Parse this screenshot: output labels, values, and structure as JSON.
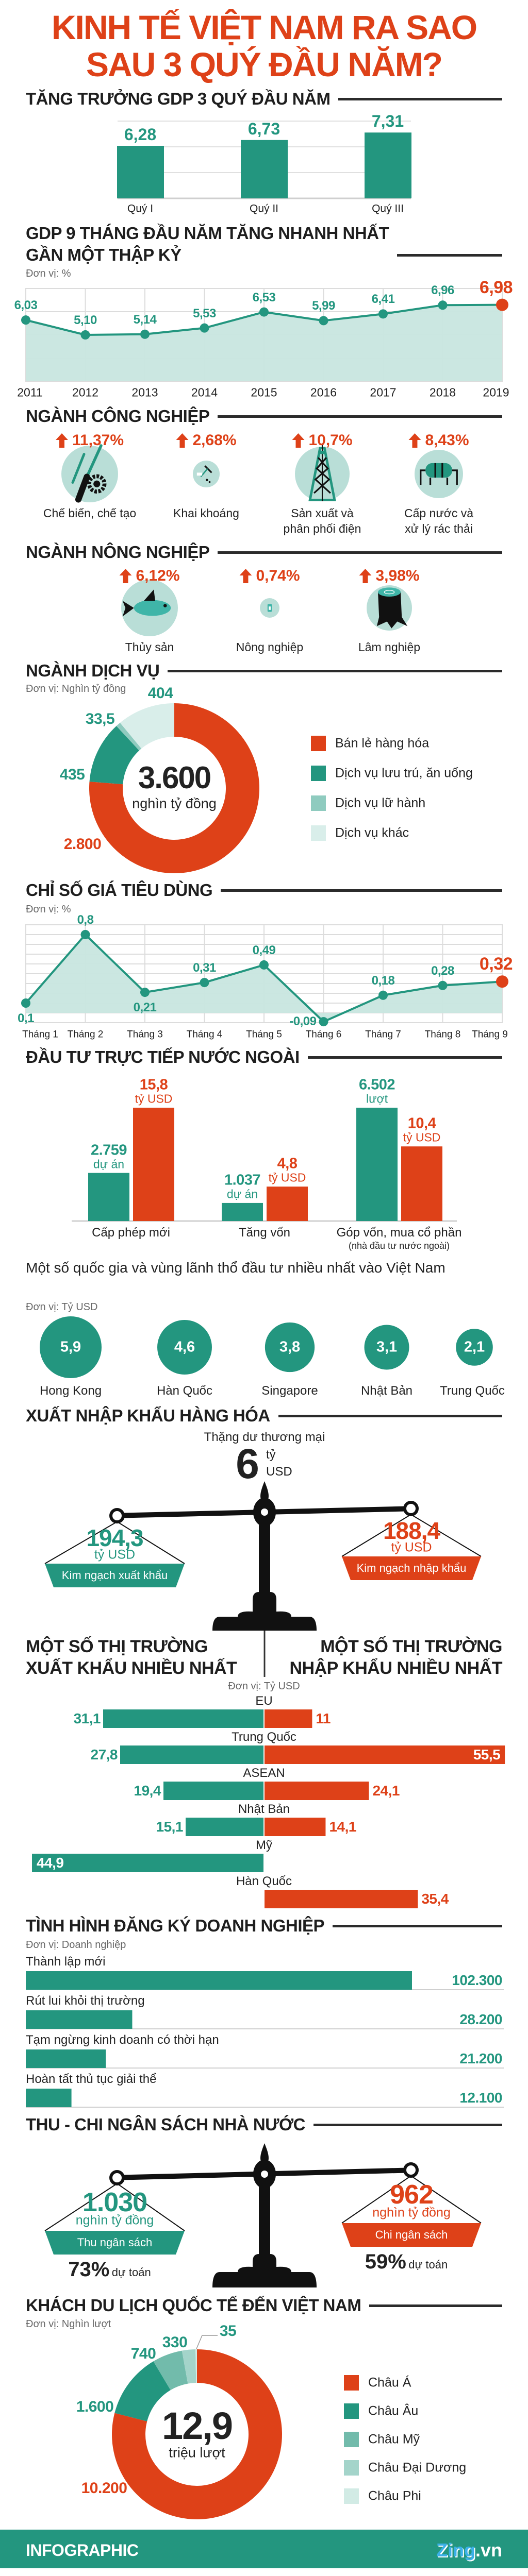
{
  "title": {
    "line1": "KINH TẾ VIỆT NAM RA SAO",
    "line2": "SAU 3 QUÝ ĐẦU NĂM?"
  },
  "colors": {
    "green": "#23967f",
    "orange": "#de4118",
    "light_teal": "#b9ded7",
    "area_fill": "#c8e6df",
    "dark": "#1e1e1e"
  },
  "industry": {
    "title": "NGÀNH CÔNG NGHIỆP",
    "items": [
      {
        "pct": "11,37%",
        "label": "Chế biến, chế tạo",
        "icon": "tools-icon"
      },
      {
        "pct": "2,68%",
        "label": "Khai khoáng",
        "icon": "pickaxe-icon"
      },
      {
        "pct": "10,7%",
        "label": "Sản xuất và\nphân phối điện",
        "icon": "power-tower-icon"
      },
      {
        "pct": "8,43%",
        "label": "Cấp nước và\nxử lý rác thải",
        "icon": "water-tank-icon"
      }
    ]
  },
  "agriculture": {
    "title": "NGÀNH NÔNG NGHIỆP",
    "items": [
      {
        "pct": "6,12%",
        "label": "Thủy sản",
        "icon": "fish-icon"
      },
      {
        "pct": "0,74%",
        "label": "Nông nghiệp",
        "icon": "grain-bag-icon"
      },
      {
        "pct": "3,98%",
        "label": "Lâm nghiệp",
        "icon": "tree-stump-icon"
      }
    ]
  },
  "trade_balance": {
    "title": "XUẤT NHẬP KHẨU HÀNG HÓA",
    "surplus_label": "Thặng dư thương mại",
    "surplus_value": "6",
    "surplus_unit_1": "tỷ",
    "surplus_unit_2": "USD",
    "export": {
      "value": "194,3",
      "unit": "tỷ USD",
      "label": "Kim ngạch xuất khẩu"
    },
    "import": {
      "value": "188,4",
      "unit": "tỷ USD",
      "label": "Kim ngạch nhập khẩu"
    }
  },
  "budget": {
    "title": "THU - CHI NGÂN SÁCH NHÀ NƯỚC",
    "revenue": {
      "value": "1.030",
      "unit": "nghìn tỷ đồng",
      "label": "Thu ngân sách",
      "pct": "73%",
      "pct_label": "dự toán"
    },
    "spending": {
      "value": "962",
      "unit": "nghìn tỷ đồng",
      "label": "Chi ngân sách",
      "pct": "59%",
      "pct_label": "dự toán"
    }
  },
  "footer": {
    "label": "INFOGRAPHIC",
    "brand_main": "Zing",
    "brand_suffix": ".vn"
  },
  "chart_data": [
    {
      "type": "bar",
      "title": "TĂNG TRƯỞNG GDP 3 QUÝ ĐẦU NĂM",
      "categories": [
        "Quý I",
        "Quý II",
        "Quý III"
      ],
      "values": [
        6.28,
        6.73,
        7.31
      ],
      "labels": [
        "6,28",
        "6,73",
        "7,31"
      ],
      "ylim": [
        2.2,
        8.2
      ],
      "grid": true
    },
    {
      "type": "area",
      "title": "GDP 9 THÁNG ĐẦU NĂM TĂNG NHANH NHẤT\nGẦN MỘT THẬP KỶ",
      "unit": "Đơn vị: %",
      "x": [
        "2011",
        "2012",
        "2013",
        "2014",
        "2015",
        "2016",
        "2017",
        "2018",
        "2019"
      ],
      "values": [
        6.03,
        5.1,
        5.14,
        5.53,
        6.53,
        5.99,
        6.41,
        6.96,
        6.98
      ],
      "labels": [
        "6,03",
        "5,10",
        "5,14",
        "5,53",
        "6,53",
        "5,99",
        "6,41",
        "6,96",
        "6,98"
      ],
      "ylim": [
        2.2,
        8.0
      ],
      "grid": true,
      "highlight_last": true
    },
    {
      "type": "pie",
      "title": "NGÀNH DỊCH VỤ",
      "unit": "Đơn vị: Nghìn tỷ đồng",
      "center_value": "3.600",
      "center_unit": "nghìn tỷ đồng",
      "categories": [
        "Bán lẻ hàng hóa",
        "Dịch vụ lưu trú, ăn uống",
        "Dịch vụ lữ hành",
        "Dịch vụ khác"
      ],
      "values": [
        2800,
        435,
        33.5,
        404
      ],
      "labels": [
        "2.800",
        "435",
        "33,5",
        "404"
      ],
      "colors": [
        "#de4118",
        "#23967f",
        "#8fcbbf",
        "#d9eeea"
      ],
      "legend": "right"
    },
    {
      "type": "area",
      "title": "CHỈ SỐ GIÁ TIÊU DÙNG",
      "unit": "Đơn vị: %",
      "x": [
        "Tháng 1",
        "Tháng 2",
        "Tháng 3",
        "Tháng 4",
        "Tháng 5",
        "Tháng 6",
        "Tháng 7",
        "Tháng 8",
        "Tháng 9"
      ],
      "values": [
        0.1,
        0.8,
        0.21,
        0.31,
        0.49,
        -0.09,
        0.18,
        0.28,
        0.32
      ],
      "labels": [
        "0,1",
        "0,8",
        "0,21",
        "0,31",
        "0,49",
        "-0,09",
        "0,18",
        "0,28",
        "0,32"
      ],
      "ylim": [
        -0.1,
        0.9
      ],
      "grid": true,
      "highlight_last": true
    },
    {
      "type": "bar",
      "title": "ĐẦU TƯ TRỰC TIẾP NƯỚC NGOÀI",
      "categories": [
        "Cấp phép mới",
        "Tăng vốn",
        "Góp vốn, mua cổ phần"
      ],
      "category_notes": [
        "",
        "",
        "(nhà đầu tư nước ngoài)"
      ],
      "series": [
        {
          "values": [
            2759,
            1037,
            6502
          ],
          "labels": [
            "2.759",
            "1.037",
            "6.502"
          ],
          "units": [
            "dự án",
            "dự án",
            "lượt"
          ],
          "color": "#23967f"
        },
        {
          "values": [
            15.8,
            4.8,
            10.4
          ],
          "labels": [
            "15,8",
            "4,8",
            "10,4"
          ],
          "units": [
            "tỷ USD",
            "tỷ USD",
            "tỷ USD"
          ],
          "color": "#de4118"
        }
      ]
    },
    {
      "type": "scatter",
      "title": "Một số quốc gia và vùng lãnh thổ đầu tư nhiều nhất vào Việt Nam",
      "unit": "Đơn vị: Tỷ USD",
      "categories": [
        "Hong Kong",
        "Hàn Quốc",
        "Singapore",
        "Nhật Bản",
        "Trung Quốc"
      ],
      "values": [
        5.9,
        4.6,
        3.8,
        3.1,
        2.1
      ],
      "labels": [
        "5,9",
        "4,6",
        "3,8",
        "3,1",
        "2,1"
      ]
    },
    {
      "type": "bar",
      "orientation": "diverging-horizontal",
      "title_left": "MỘT SỐ THỊ TRƯỜNG\nXUẤT KHẨU NHIỀU NHẤT",
      "title_right": "MỘT SỐ THỊ TRƯỜNG\nNHẬP KHẨU NHIỀU NHẤT",
      "unit": "Đơn vị: Tỷ USD",
      "categories": [
        "EU",
        "Trung Quốc",
        "ASEAN",
        "Nhật Bản",
        "Mỹ",
        "Hàn Quốc"
      ],
      "series": [
        {
          "values": [
            31.1,
            27.8,
            19.4,
            15.1,
            44.9,
            null
          ],
          "labels": [
            "31,1",
            "27,8",
            "19,4",
            "15,1",
            "44,9",
            ""
          ],
          "color": "#23967f"
        },
        {
          "values": [
            11,
            55.5,
            24.1,
            14.1,
            null,
            35.4
          ],
          "labels": [
            "11",
            "55,5",
            "24,1",
            "14,1",
            "",
            "35,4"
          ],
          "color": "#de4118"
        }
      ]
    },
    {
      "type": "bar",
      "orientation": "horizontal",
      "title": "TÌNH HÌNH ĐĂNG KÝ DOANH NGHIỆP",
      "unit": "Đơn vị: Doanh nghiệp",
      "categories": [
        "Thành lập mới",
        "Rút lui khỏi thị trường",
        "Tạm ngừng kinh doanh có thời hạn",
        "Hoàn tất thủ tục giải thể"
      ],
      "values": [
        102300,
        28200,
        21200,
        12100
      ],
      "labels": [
        "102.300",
        "28.200",
        "21.200",
        "12.100"
      ]
    },
    {
      "type": "pie",
      "title": "KHÁCH DU LỊCH QUỐC TẾ ĐẾN VIỆT NAM",
      "unit": "Đơn vị: Nghìn lượt",
      "center_value": "12,9",
      "center_unit": "triệu lượt",
      "categories": [
        "Châu Á",
        "Châu Âu",
        "Châu Mỹ",
        "Châu Đại Dương",
        "Châu Phi"
      ],
      "values": [
        10200,
        1600,
        740,
        330,
        35
      ],
      "labels": [
        "10.200",
        "1.600",
        "740",
        "330",
        "35"
      ],
      "colors": [
        "#de4118",
        "#23967f",
        "#72bbab",
        "#a4d4ca",
        "#d2ebe5"
      ],
      "legend": "right"
    }
  ]
}
